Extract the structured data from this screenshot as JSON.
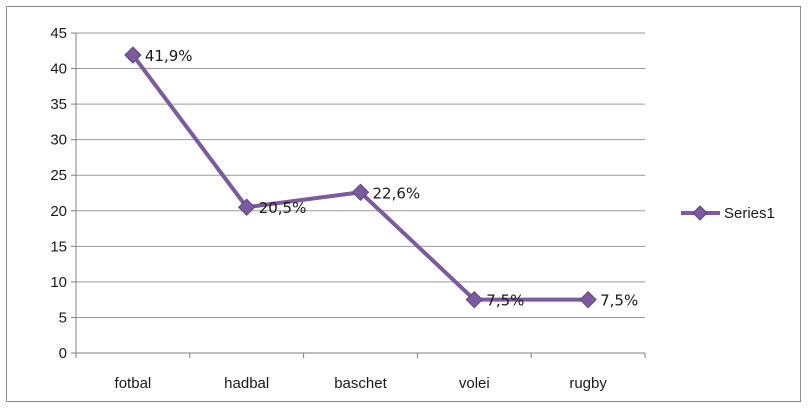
{
  "chart_data": {
    "type": "line",
    "categories": [
      "fotbal",
      "hadbal",
      "baschet",
      "volei",
      "rugby"
    ],
    "series": [
      {
        "name": "Series1",
        "values": [
          41.9,
          20.5,
          22.6,
          7.5,
          7.5
        ],
        "labels": [
          "41,9%",
          "20,5%",
          "22,6%",
          "7,5%",
          "7,5%"
        ],
        "color": "#7b5a9e",
        "marker": "diamond"
      }
    ],
    "yticks": [
      "0",
      "5",
      "10",
      "15",
      "20",
      "25",
      "30",
      "35",
      "40",
      "45"
    ],
    "ylim": [
      0,
      45
    ],
    "grid": true,
    "legend": "right",
    "colors": {
      "gridline": "#9a9a9a",
      "axis": "#7f7f7f",
      "text": "#1a1a1a"
    }
  }
}
